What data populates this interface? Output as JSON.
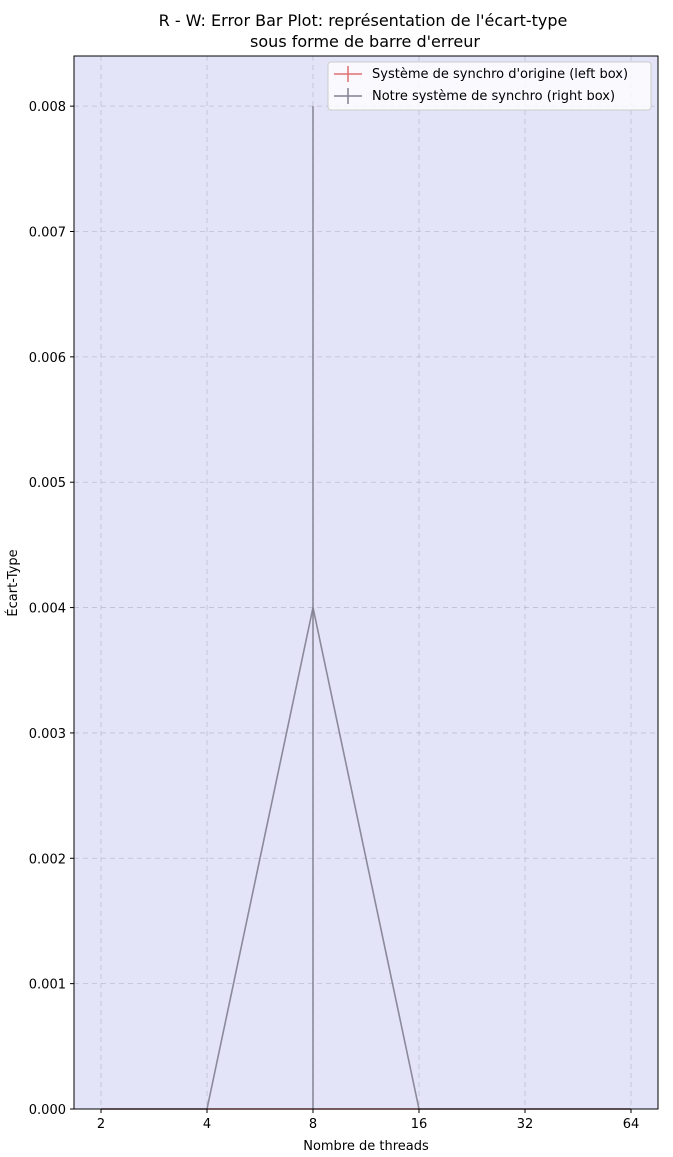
{
  "chart_data": {
    "type": "line",
    "title_lines": [
      "R - W: Error Bar Plot: représentation de l'écart-type",
      "sous forme de barre d'erreur"
    ],
    "xlabel": "Nombre de threads",
    "ylabel": "Écart-Type",
    "categories": [
      "2",
      "4",
      "8",
      "16",
      "32",
      "64"
    ],
    "yticks": [
      "0.000",
      "0.001",
      "0.002",
      "0.003",
      "0.004",
      "0.005",
      "0.006",
      "0.007",
      "0.008"
    ],
    "ylim": [
      0,
      0.0084
    ],
    "grid": true,
    "legend_position": "top-right",
    "background_color": "#e4e4f8",
    "series": [
      {
        "name": "Système de synchro d'origine (left box)",
        "color": "#e07070",
        "values": [
          0,
          0,
          0,
          0,
          0,
          0
        ],
        "errors": [
          0,
          0,
          0,
          0,
          0,
          0
        ]
      },
      {
        "name": "Notre système de synchro (right box)",
        "color": "#808090",
        "values": [
          0,
          0,
          0.004,
          0,
          0,
          0
        ],
        "errors": [
          0,
          0,
          0.004,
          0,
          0,
          0
        ]
      }
    ]
  }
}
